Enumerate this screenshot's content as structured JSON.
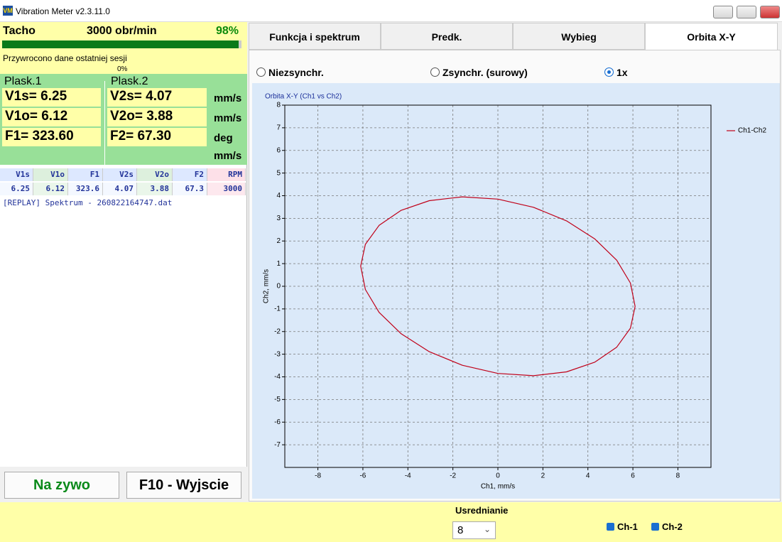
{
  "window": {
    "title": "Vibration Meter v2.3.11.0"
  },
  "left_panel": {
    "tacho": {
      "label": "Tacho",
      "rpm": "3000 obr/min",
      "percent": "98%"
    },
    "status": "Przywrocono dane ostatniej sesji",
    "progress": "0%",
    "plane1": {
      "label": "Plask.1",
      "rows": [
        "V1s= 6.25",
        "V1o= 6.12",
        "F1= 323.60"
      ]
    },
    "plane2": {
      "label": "Plask.2",
      "rows": [
        "V2s= 4.07",
        "V2o= 3.88",
        "F2= 67.30"
      ]
    },
    "units": [
      "mm/s",
      "mm/s",
      "deg",
      "mm/s"
    ],
    "table": {
      "header": [
        "V1s",
        "V1o",
        "F1",
        "V2s",
        "V2o",
        "F2",
        "RPM"
      ],
      "rows": [
        [
          "6.25",
          "6.12",
          "323.6",
          "4.07",
          "3.88",
          "67.3",
          "3000"
        ]
      ]
    },
    "log": [
      "[REPLAY] Spektrum - 260822164747.dat"
    ],
    "buttons": [
      "Na zywo",
      "F10 - Wyjscie"
    ]
  },
  "tabs": [
    "Funkcja i spektrum",
    "Predk.",
    "Wybieg",
    "Orbita X-Y"
  ],
  "radios": [
    "Niezsynchr.",
    "Zsynchr. (surowy)",
    "1x"
  ],
  "chart_data": {
    "type": "line",
    "title": "Orbita X-Y (Ch1 vs Ch2)",
    "x_label": "Ch1, mm/s",
    "y_label": "Ch2, mm/s",
    "x": [
      6.1,
      5.89,
      5.28,
      4.31,
      3.05,
      1.58,
      0,
      -1.58,
      -3.05,
      -4.31,
      -5.28,
      -5.89,
      -6.1,
      -5.89,
      -5.28,
      -4.31,
      -3.05,
      -1.58,
      0,
      1.58,
      3.05,
      4.31,
      5.28,
      5.89,
      6.1
    ],
    "series": [
      {
        "name": "Ch1-Ch2",
        "color": "#c00018",
        "values": [
          -0.89,
          0.14,
          1.15,
          2.09,
          2.89,
          3.49,
          3.85,
          3.95,
          3.78,
          3.35,
          2.69,
          1.85,
          0.89,
          -0.14,
          -1.15,
          -2.09,
          -2.89,
          -3.49,
          -3.85,
          -3.95,
          -3.78,
          -3.35,
          -2.69,
          -1.85,
          -0.89
        ]
      }
    ],
    "xlim": [
      -9.47,
      9.47
    ],
    "ylim": [
      -8,
      8
    ],
    "xticks": [
      -8,
      -6,
      -4,
      -2,
      0,
      2,
      4,
      6,
      8
    ],
    "yticks": [
      -7,
      -6,
      -5,
      -4,
      -3,
      -2,
      -1,
      0,
      1,
      2,
      3,
      4,
      5,
      6,
      7,
      8
    ],
    "grid": true,
    "legend": "right"
  },
  "footer": {
    "averaging_label": "Usrednianie",
    "averaging_value": "8",
    "checkboxes": [
      "Ch-1",
      "Ch-2"
    ]
  }
}
